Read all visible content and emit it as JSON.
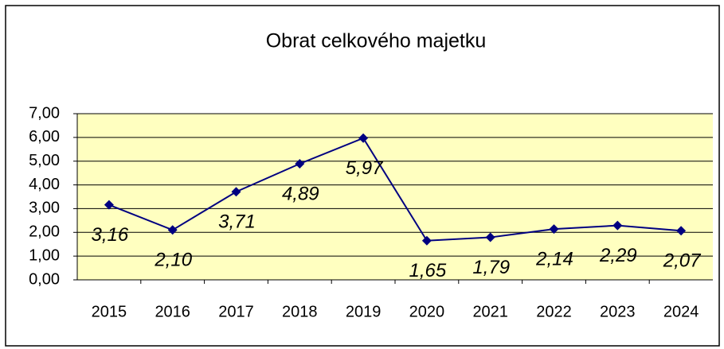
{
  "chart_data": {
    "type": "line",
    "title": "Obrat celkového majetku",
    "categories": [
      "2015",
      "2016",
      "2017",
      "2018",
      "2019",
      "2020",
      "2021",
      "2022",
      "2023",
      "2024"
    ],
    "values": [
      3.16,
      2.1,
      3.71,
      4.89,
      5.97,
      1.65,
      1.79,
      2.14,
      2.29,
      2.07
    ],
    "value_labels": [
      "3,16",
      "2,10",
      "3,71",
      "4,89",
      "5,97",
      "1,65",
      "1,79",
      "2,14",
      "2,29",
      "2,07"
    ],
    "color": "#000080",
    "plot_background": "#ffffc0",
    "ylim": [
      0,
      7
    ],
    "yticks": [
      {
        "value": 0,
        "label": "0,00"
      },
      {
        "value": 1,
        "label": "1,00"
      },
      {
        "value": 2,
        "label": "2,00"
      },
      {
        "value": 3,
        "label": "3,00"
      },
      {
        "value": 4,
        "label": "4,00"
      },
      {
        "value": 5,
        "label": "5,00"
      },
      {
        "value": 6,
        "label": "6,00"
      },
      {
        "value": 7,
        "label": "7,00"
      }
    ],
    "grid": true
  }
}
